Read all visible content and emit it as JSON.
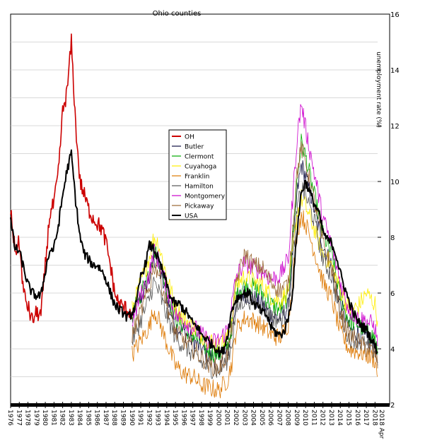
{
  "chart_data": {
    "type": "line",
    "title": "Ohio counties",
    "ylabel": "unemployment rate (%)",
    "ylim": [
      2,
      16
    ],
    "yticks": [
      2,
      4,
      6,
      8,
      10,
      12,
      14,
      16
    ],
    "xlim": [
      1976.0,
      2018.3
    ],
    "xtick_years": [
      1976,
      1977,
      1978,
      1979,
      1980,
      1981,
      1982,
      1983,
      1984,
      1985,
      1986,
      1987,
      1988,
      1989,
      1990,
      1991,
      1992,
      1993,
      1994,
      1995,
      1996,
      1997,
      1998,
      1999,
      2000,
      2001,
      2002,
      2003,
      2004,
      2005,
      2006,
      2007,
      2008,
      2009,
      2010,
      2011,
      2012,
      2013,
      2014,
      2015,
      2016,
      2017,
      2018
    ],
    "xtick_extra": "2018 Apr",
    "grid": true,
    "legend_position": "center-left",
    "series": [
      {
        "name": "OH",
        "color": "#cc0000",
        "width": 1.6,
        "x": [
          1976.0,
          1976.5,
          1977.0,
          1977.5,
          1978.0,
          1978.5,
          1979.0,
          1979.5,
          1980.0,
          1980.5,
          1981.0,
          1981.5,
          1982.0,
          1982.5,
          1983.0,
          1983.5,
          1984.0,
          1984.5,
          1985.0,
          1985.5,
          1986.0,
          1986.5,
          1987.0,
          1987.5,
          1988.0,
          1988.5,
          1989.0,
          1989.5,
          1990.0
        ],
        "y": [
          9.0,
          7.5,
          7.8,
          6.0,
          5.5,
          5.0,
          5.3,
          5.2,
          7.0,
          8.8,
          9.2,
          10.3,
          12.5,
          13.2,
          15.0,
          12.0,
          10.0,
          9.5,
          9.0,
          8.7,
          8.5,
          8.3,
          7.8,
          7.0,
          6.0,
          5.6,
          5.5,
          5.4,
          5.3
        ]
      },
      {
        "name": "Butler",
        "color": "#111144",
        "width": 0.8,
        "x": [
          1990.0,
          1991.0,
          1992.0,
          1992.5,
          1993.0,
          1994.0,
          1995.0,
          1996.0,
          1997.0,
          1998.0,
          1999.0,
          2000.0,
          2001.0,
          2001.5,
          2002.0,
          2003.0,
          2004.0,
          2005.0,
          2006.0,
          2007.0,
          2008.0,
          2009.0,
          2009.5,
          2010.0,
          2011.0,
          2012.0,
          2013.0,
          2014.0,
          2015.0,
          2016.0,
          2017.0,
          2018.0,
          2018.3
        ],
        "y": [
          5.0,
          5.8,
          6.5,
          7.2,
          7.0,
          5.8,
          4.8,
          4.6,
          4.3,
          4.0,
          3.7,
          3.6,
          3.9,
          4.6,
          5.8,
          6.0,
          5.8,
          5.6,
          5.2,
          5.1,
          5.5,
          9.5,
          10.6,
          10.2,
          9.0,
          7.7,
          7.0,
          5.6,
          4.7,
          4.6,
          4.3,
          4.2,
          3.5
        ]
      },
      {
        "name": "Clermont",
        "color": "#00aa00",
        "width": 0.8,
        "x": [
          1990.0,
          1991.0,
          1992.0,
          1992.5,
          1993.0,
          1994.0,
          1995.0,
          1996.0,
          1997.0,
          1998.0,
          1999.0,
          2000.0,
          2001.0,
          2001.5,
          2002.0,
          2003.0,
          2004.0,
          2005.0,
          2006.0,
          2007.0,
          2008.0,
          2009.0,
          2009.5,
          2010.0,
          2011.0,
          2012.0,
          2013.0,
          2014.0,
          2015.0,
          2016.0,
          2017.0,
          2018.0,
          2018.3
        ],
        "y": [
          5.2,
          6.0,
          6.8,
          7.6,
          7.3,
          6.1,
          5.1,
          4.8,
          4.5,
          4.2,
          3.9,
          3.8,
          4.1,
          4.8,
          6.0,
          6.3,
          6.2,
          6.0,
          5.6,
          5.4,
          5.9,
          10.0,
          11.4,
          10.9,
          9.5,
          8.1,
          7.4,
          5.9,
          5.0,
          4.9,
          4.6,
          4.4,
          3.8
        ]
      },
      {
        "name": "Cuyahoga",
        "color": "#ffee00",
        "width": 0.8,
        "x": [
          1990.0,
          1991.0,
          1992.0,
          1992.5,
          1993.0,
          1994.0,
          1995.0,
          1996.0,
          1997.0,
          1998.0,
          1999.0,
          2000.0,
          2001.0,
          2001.5,
          2002.0,
          2003.0,
          2004.0,
          2005.0,
          2006.0,
          2007.0,
          2008.0,
          2009.0,
          2009.5,
          2010.0,
          2011.0,
          2012.0,
          2013.0,
          2014.0,
          2015.0,
          2016.0,
          2017.0,
          2018.0,
          2018.3
        ],
        "y": [
          5.4,
          6.4,
          7.3,
          8.0,
          7.8,
          6.6,
          5.5,
          5.1,
          4.8,
          4.5,
          4.3,
          4.1,
          4.4,
          5.1,
          6.3,
          6.6,
          6.4,
          6.3,
          5.9,
          5.7,
          6.1,
          8.8,
          9.4,
          9.1,
          8.3,
          7.4,
          7.0,
          6.1,
          5.4,
          5.5,
          6.0,
          5.6,
          5.0
        ]
      },
      {
        "name": "Franklin",
        "color": "#dd7700",
        "width": 0.8,
        "x": [
          1990.0,
          1991.0,
          1992.0,
          1992.5,
          1993.0,
          1994.0,
          1995.0,
          1996.0,
          1997.0,
          1998.0,
          1999.0,
          2000.0,
          2001.0,
          2001.5,
          2002.0,
          2003.0,
          2004.0,
          2005.0,
          2006.0,
          2007.0,
          2008.0,
          2009.0,
          2009.5,
          2010.0,
          2011.0,
          2012.0,
          2013.0,
          2014.0,
          2015.0,
          2016.0,
          2017.0,
          2018.0,
          2018.3
        ],
        "y": [
          3.8,
          4.3,
          4.8,
          5.4,
          5.1,
          4.2,
          3.4,
          3.1,
          3.0,
          2.7,
          2.6,
          2.5,
          2.9,
          3.5,
          4.7,
          5.1,
          5.0,
          4.8,
          4.5,
          4.4,
          4.9,
          8.1,
          8.8,
          8.5,
          7.5,
          6.4,
          5.8,
          4.6,
          4.0,
          3.9,
          3.8,
          3.6,
          3.0
        ]
      },
      {
        "name": "Hamilton",
        "color": "#555555",
        "width": 0.8,
        "x": [
          1990.0,
          1991.0,
          1992.0,
          1992.5,
          1993.0,
          1994.0,
          1995.0,
          1996.0,
          1997.0,
          1998.0,
          1999.0,
          2000.0,
          2001.0,
          2001.5,
          2002.0,
          2003.0,
          2004.0,
          2005.0,
          2006.0,
          2007.0,
          2008.0,
          2009.0,
          2009.5,
          2010.0,
          2011.0,
          2012.0,
          2013.0,
          2014.0,
          2015.0,
          2016.0,
          2017.0,
          2018.0,
          2018.3
        ],
        "y": [
          4.3,
          5.0,
          5.8,
          6.4,
          6.1,
          5.2,
          4.4,
          4.1,
          3.8,
          3.5,
          3.3,
          3.2,
          3.6,
          4.2,
          5.4,
          5.8,
          5.7,
          5.5,
          5.2,
          5.0,
          5.3,
          8.9,
          9.8,
          9.5,
          8.6,
          7.2,
          6.6,
          5.2,
          4.4,
          4.3,
          4.1,
          3.9,
          3.4
        ]
      },
      {
        "name": "Montgomery",
        "color": "#cc00cc",
        "width": 0.8,
        "x": [
          1990.0,
          1991.0,
          1992.0,
          1992.5,
          1993.0,
          1994.0,
          1995.0,
          1996.0,
          1997.0,
          1998.0,
          1999.0,
          2000.0,
          2001.0,
          2001.5,
          2002.0,
          2003.0,
          2004.0,
          2005.0,
          2006.0,
          2007.0,
          2008.0,
          2009.0,
          2009.5,
          2010.0,
          2011.0,
          2012.0,
          2013.0,
          2014.0,
          2015.0,
          2016.0,
          2017.0,
          2018.0,
          2018.3
        ],
        "y": [
          5.0,
          5.9,
          6.7,
          7.5,
          7.2,
          6.2,
          5.2,
          5.0,
          4.8,
          4.5,
          4.2,
          4.3,
          4.7,
          5.6,
          6.6,
          7.1,
          6.9,
          6.8,
          6.5,
          6.6,
          7.2,
          11.5,
          12.8,
          11.9,
          10.3,
          8.7,
          7.7,
          6.4,
          5.4,
          5.1,
          5.0,
          4.8,
          4.1
        ]
      },
      {
        "name": "Pickaway",
        "color": "#996633",
        "width": 0.8,
        "x": [
          1990.0,
          1991.0,
          1992.0,
          1992.5,
          1993.0,
          1994.0,
          1995.0,
          1996.0,
          1997.0,
          1998.0,
          1999.0,
          2000.0,
          2001.0,
          2001.5,
          2002.0,
          2003.0,
          2004.0,
          2005.0,
          2006.0,
          2007.0,
          2008.0,
          2009.0,
          2009.5,
          2010.0,
          2011.0,
          2012.0,
          2013.0,
          2014.0,
          2015.0,
          2016.0,
          2017.0,
          2018.0,
          2018.3
        ],
        "y": [
          4.5,
          5.3,
          6.2,
          7.0,
          6.8,
          5.6,
          4.6,
          4.3,
          4.0,
          3.7,
          3.4,
          3.3,
          3.8,
          4.8,
          6.4,
          7.4,
          7.0,
          6.9,
          6.4,
          6.1,
          6.3,
          10.3,
          11.2,
          10.7,
          9.3,
          7.8,
          6.9,
          5.3,
          4.5,
          4.3,
          4.0,
          3.9,
          3.3
        ]
      },
      {
        "name": "USA",
        "color": "#000000",
        "width": 2.0,
        "x": [
          1976.0,
          1976.5,
          1977.0,
          1977.5,
          1978.0,
          1978.5,
          1979.0,
          1979.5,
          1980.0,
          1980.5,
          1981.0,
          1981.5,
          1982.0,
          1982.5,
          1983.0,
          1983.5,
          1984.0,
          1984.5,
          1985.0,
          1985.5,
          1986.0,
          1986.5,
          1987.0,
          1987.5,
          1988.0,
          1988.5,
          1989.0,
          1989.5,
          1990.0,
          1990.5,
          1991.0,
          1991.5,
          1992.0,
          1992.5,
          1993.0,
          1993.5,
          1994.0,
          1994.5,
          1995.0,
          1995.5,
          1996.0,
          1996.5,
          1997.0,
          1997.5,
          1998.0,
          1998.5,
          1999.0,
          1999.5,
          2000.0,
          2000.5,
          2001.0,
          2001.5,
          2002.0,
          2002.5,
          2003.0,
          2003.5,
          2004.0,
          2004.5,
          2005.0,
          2005.5,
          2006.0,
          2006.5,
          2007.0,
          2007.5,
          2008.0,
          2008.5,
          2009.0,
          2009.5,
          2010.0,
          2010.5,
          2011.0,
          2011.5,
          2012.0,
          2012.5,
          2013.0,
          2013.5,
          2014.0,
          2014.5,
          2015.0,
          2015.5,
          2016.0,
          2016.5,
          2017.0,
          2017.5,
          2018.0,
          2018.3
        ],
        "y": [
          8.6,
          7.6,
          7.5,
          6.9,
          6.3,
          6.0,
          5.9,
          5.9,
          6.8,
          7.5,
          7.6,
          8.4,
          9.5,
          10.4,
          11.0,
          9.3,
          8.0,
          7.4,
          7.2,
          7.0,
          7.0,
          6.8,
          6.5,
          6.0,
          5.6,
          5.4,
          5.3,
          5.1,
          5.3,
          5.6,
          6.6,
          7.0,
          7.7,
          7.6,
          7.2,
          6.8,
          6.3,
          5.8,
          5.6,
          5.6,
          5.4,
          5.2,
          4.9,
          4.8,
          4.5,
          4.4,
          4.2,
          4.1,
          3.9,
          3.9,
          4.5,
          5.4,
          5.8,
          5.9,
          6.0,
          6.0,
          5.6,
          5.5,
          5.3,
          5.2,
          4.8,
          4.6,
          4.5,
          4.6,
          5.1,
          6.0,
          8.2,
          9.6,
          10.0,
          9.6,
          9.2,
          8.9,
          8.2,
          7.9,
          7.8,
          7.4,
          6.7,
          6.2,
          5.7,
          5.3,
          5.0,
          4.8,
          4.7,
          4.4,
          4.1,
          3.9
        ]
      }
    ]
  }
}
